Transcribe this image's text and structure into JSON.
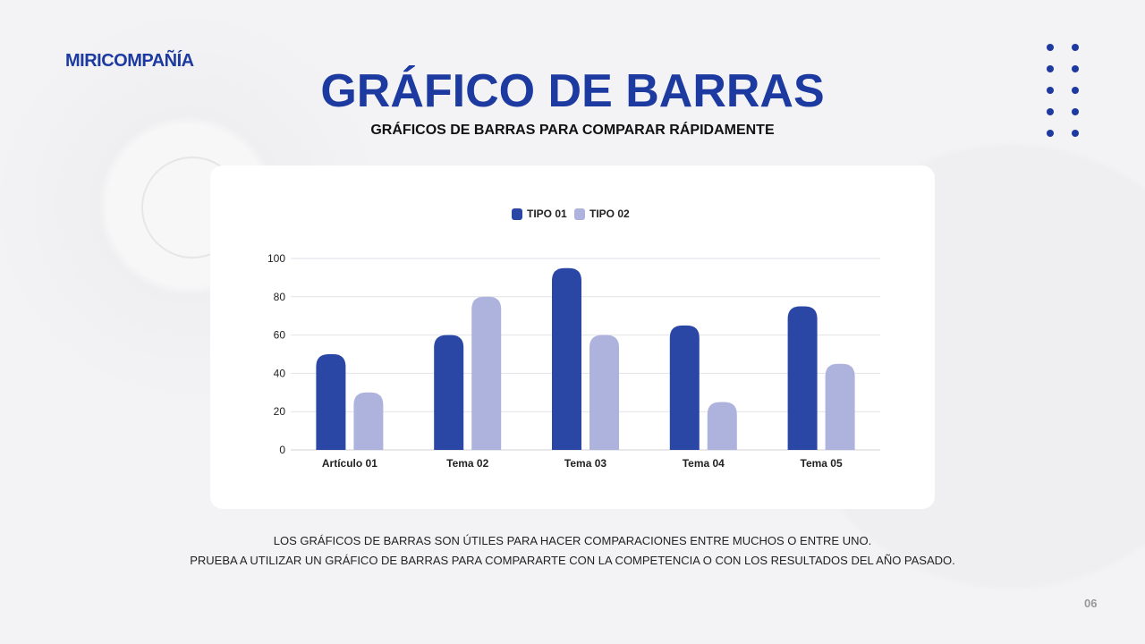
{
  "brand": "MIRICOMPAÑÍA",
  "title": "GRÁFICO DE BARRAS",
  "subtitle": "GRÁFICOS DE BARRAS PARA COMPARAR RÁPIDAMENTE",
  "caption": [
    "LOS GRÁFICOS DE BARRAS SON ÚTILES PARA HACER COMPARACIONES ENTRE MUCHOS O ENTRE UNO.",
    "PRUEBA A UTILIZAR UN GRÁFICO DE BARRAS PARA COMPARARTE CON LA COMPETENCIA O CON LOS RESULTADOS DEL AÑO PASADO."
  ],
  "page_number": "06",
  "colors": {
    "accent": "#1d3aa1",
    "tipo01": "#2a47a6",
    "tipo02": "#adb3dc"
  },
  "chart_data": {
    "type": "bar",
    "title": "",
    "categories": [
      "Artículo 01",
      "Tema 02",
      "Tema 03",
      "Tema 04",
      "Tema 05"
    ],
    "series": [
      {
        "name": "TIPO 01",
        "values": [
          50,
          60,
          95,
          65,
          75
        ]
      },
      {
        "name": "TIPO 02",
        "values": [
          30,
          80,
          60,
          25,
          45
        ]
      }
    ],
    "yticks": [
      0,
      20,
      40,
      60,
      80,
      100
    ],
    "ylim": [
      0,
      100
    ],
    "grid": true,
    "legend": "top-center",
    "xlabel": "",
    "ylabel": ""
  }
}
